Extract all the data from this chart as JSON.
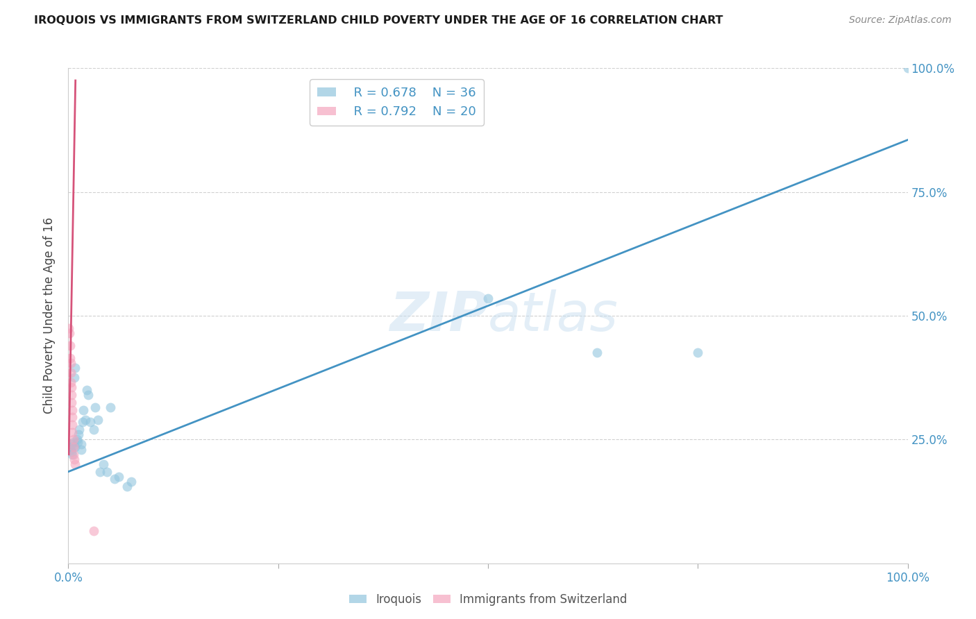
{
  "title": "IROQUOIS VS IMMIGRANTS FROM SWITZERLAND CHILD POVERTY UNDER THE AGE OF 16 CORRELATION CHART",
  "source": "Source: ZipAtlas.com",
  "ylabel": "Child Poverty Under the Age of 16",
  "xlim": [
    0,
    1.0
  ],
  "ylim": [
    0,
    1.0
  ],
  "watermark": "ZIPatlas",
  "blue_color": "#92c5de",
  "pink_color": "#f4a6be",
  "blue_line_color": "#4393c3",
  "pink_line_color": "#d6537a",
  "legend_blue_R": "R = 0.678",
  "legend_blue_N": "N = 36",
  "legend_pink_R": "R = 0.792",
  "legend_pink_N": "N = 20",
  "blue_scatter_x": [
    0.003,
    0.004,
    0.004,
    0.005,
    0.005,
    0.006,
    0.007,
    0.008,
    0.008,
    0.01,
    0.011,
    0.012,
    0.013,
    0.015,
    0.015,
    0.017,
    0.018,
    0.02,
    0.022,
    0.024,
    0.026,
    0.03,
    0.032,
    0.035,
    0.038,
    0.042,
    0.046,
    0.05,
    0.055,
    0.06,
    0.07,
    0.075,
    0.5,
    0.63,
    0.75,
    1.0
  ],
  "blue_scatter_y": [
    0.23,
    0.24,
    0.225,
    0.235,
    0.22,
    0.245,
    0.375,
    0.395,
    0.235,
    0.25,
    0.245,
    0.26,
    0.27,
    0.24,
    0.23,
    0.285,
    0.31,
    0.29,
    0.35,
    0.34,
    0.285,
    0.27,
    0.315,
    0.29,
    0.185,
    0.2,
    0.185,
    0.315,
    0.17,
    0.175,
    0.155,
    0.165,
    0.535,
    0.425,
    0.425,
    1.0
  ],
  "pink_scatter_x": [
    0.0005,
    0.001,
    0.002,
    0.002,
    0.003,
    0.003,
    0.003,
    0.004,
    0.004,
    0.004,
    0.005,
    0.005,
    0.005,
    0.005,
    0.006,
    0.006,
    0.006,
    0.007,
    0.008,
    0.03
  ],
  "pink_scatter_y": [
    0.475,
    0.465,
    0.44,
    0.415,
    0.405,
    0.385,
    0.365,
    0.355,
    0.34,
    0.325,
    0.31,
    0.295,
    0.28,
    0.265,
    0.25,
    0.235,
    0.22,
    0.21,
    0.2,
    0.065
  ],
  "blue_line_x0": 0.0,
  "blue_line_y0": 0.185,
  "blue_line_x1": 1.0,
  "blue_line_y1": 0.855,
  "pink_line_x0": 0.0005,
  "pink_line_y0": 0.22,
  "pink_line_x1": 0.0085,
  "pink_line_y1": 0.975,
  "bg_color": "#ffffff",
  "grid_color": "#d0d0d0"
}
